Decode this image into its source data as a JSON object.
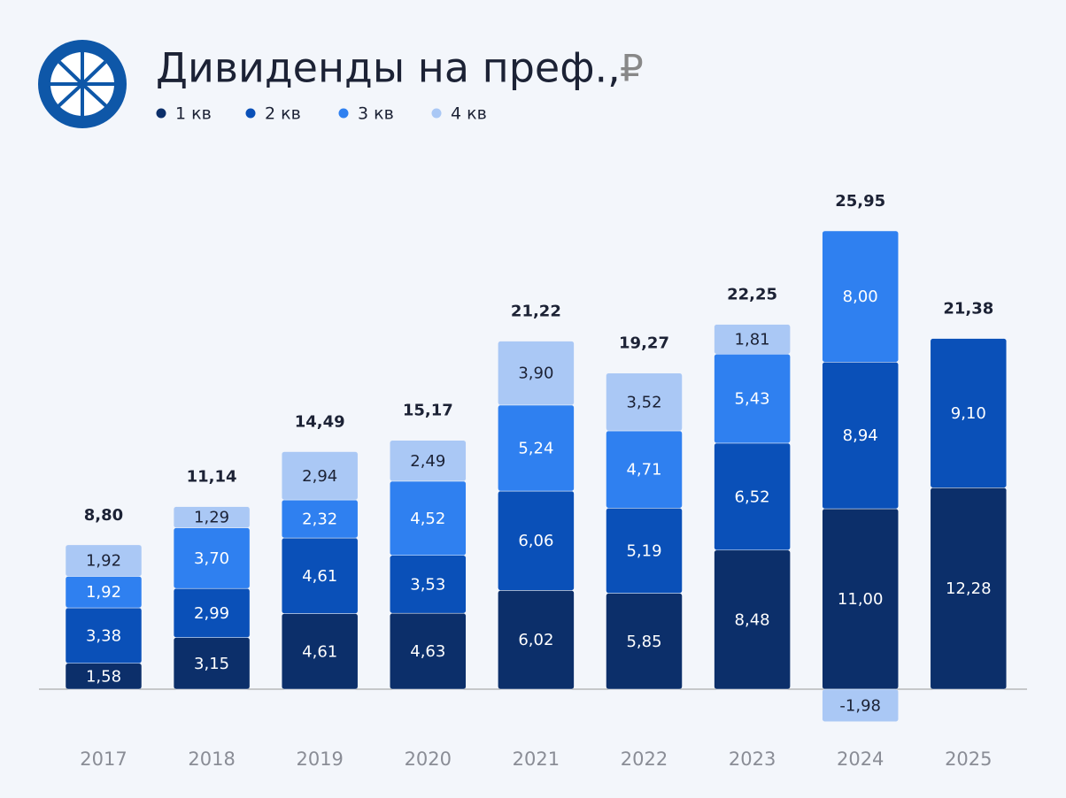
{
  "chart_data": {
    "type": "bar",
    "stacked": true,
    "title": "Дивиденды на преф.,",
    "unit": "₽",
    "categories": [
      "2017",
      "2018",
      "2019",
      "2020",
      "2021",
      "2022",
      "2023",
      "2024",
      "2025"
    ],
    "series": [
      {
        "name": "1 кв",
        "color": "#0c2f6a",
        "values": [
          1.58,
          3.15,
          4.61,
          4.63,
          6.02,
          5.85,
          8.48,
          11.0,
          12.28
        ],
        "value_labels": [
          "1,58",
          "3,15",
          "4,61",
          "4,63",
          "6,02",
          "5,85",
          "8,48",
          "11,00",
          "12,28"
        ]
      },
      {
        "name": "2 кв",
        "color": "#0a50b8",
        "values": [
          3.38,
          2.99,
          4.61,
          3.53,
          6.06,
          5.19,
          6.52,
          8.94,
          9.1
        ],
        "value_labels": [
          "3,38",
          "2,99",
          "4,61",
          "3,53",
          "6,06",
          "5,19",
          "6,52",
          "8,94",
          "9,10"
        ]
      },
      {
        "name": "3 кв",
        "color": "#2f80f0",
        "values": [
          1.92,
          3.7,
          2.32,
          4.52,
          5.24,
          4.71,
          5.43,
          8.0,
          null
        ],
        "value_labels": [
          "1,92",
          "3,70",
          "2,32",
          "4,52",
          "5,24",
          "4,71",
          "5,43",
          "8,00",
          null
        ]
      },
      {
        "name": "4 кв",
        "color": "#aac8f5",
        "values": [
          1.92,
          1.29,
          2.94,
          2.49,
          3.9,
          3.52,
          1.81,
          -1.98,
          null
        ],
        "value_labels": [
          "1,92",
          "1,29",
          "2,94",
          "2,49",
          "3,90",
          "3,52",
          "1,81",
          "-1,98",
          null
        ]
      }
    ],
    "totals": [
      8.8,
      11.14,
      14.49,
      15.17,
      21.22,
      19.27,
      22.25,
      25.95,
      21.38
    ],
    "total_labels": [
      "8,80",
      "11,14",
      "14,49",
      "15,17",
      "21,22",
      "19,27",
      "22,25",
      "25,95",
      "21,38"
    ]
  }
}
